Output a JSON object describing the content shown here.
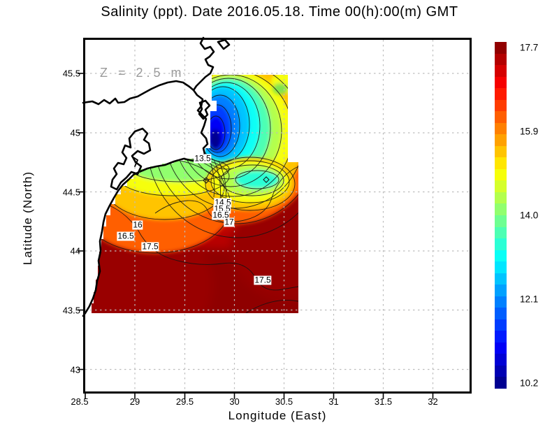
{
  "title": "Salinity (ppt). Date 2016.05.18. Time 00(h):00(m) GMT",
  "annotation": {
    "depth_label": "Z = 2.5 m"
  },
  "axes": {
    "x": {
      "label": "Longitude (East)",
      "ticks": [
        "28.5",
        "29",
        "29.5",
        "30",
        "30.5",
        "31",
        "31.5",
        "32"
      ]
    },
    "y": {
      "label": "Latitude (North)",
      "ticks": [
        "45.5",
        "45",
        "44.5",
        "44",
        "43.5",
        "43"
      ]
    }
  },
  "colorbar": {
    "labels": [
      "17.7",
      "15.9",
      "14.0",
      "12.1",
      "10.2"
    ],
    "colors_top_to_bottom": [
      "#910000",
      "#B30000",
      "#D50000",
      "#F60000",
      "#FF1A00",
      "#FF3C00",
      "#FF5E00",
      "#FF8000",
      "#FFA100",
      "#FFC400",
      "#FFE600",
      "#F6FF09",
      "#D5FF2B",
      "#B3FF4D",
      "#91FF6E",
      "#6EFF91",
      "#4DFFB3",
      "#2BFFD5",
      "#09FFF6",
      "#00E6FF",
      "#00C4FF",
      "#00A1FF",
      "#0080FF",
      "#005EFF",
      "#003CFF",
      "#001AFF",
      "#0000F6",
      "#0000D5",
      "#0000B3",
      "#000091"
    ]
  },
  "map": {
    "contour_labels": [
      "13.5",
      "16",
      "16.5",
      "17.5",
      "14.5",
      "15.5",
      "16.5",
      "17",
      "17.5"
    ]
  },
  "chart_data": {
    "type": "heatmap",
    "title": "Salinity (ppt). Date 2016.05.18. Time 00(h):00(m) GMT",
    "variable": "Salinity",
    "units": "ppt",
    "date": "2016.05.18",
    "time_gmt": "00(h):00(m)",
    "depth": "Z = 2.5 m",
    "xlabel": "Longitude (East)",
    "ylabel": "Latitude (North)",
    "xlim": [
      28.5,
      32.4
    ],
    "ylim": [
      42.8,
      45.8
    ],
    "x_ticks": [
      28.5,
      29,
      29.5,
      30,
      30.5,
      31,
      31.5,
      32
    ],
    "y_ticks": [
      43,
      43.5,
      44,
      44.5,
      45,
      45.5
    ],
    "grid": true,
    "legend_position": "right-colorbar",
    "data_extent": {
      "lon": [
        28.6,
        30.65
      ],
      "lat": [
        43.5,
        45.5
      ]
    },
    "colorbar": {
      "min": 10.2,
      "max": 17.7,
      "tick_labels": [
        17.7,
        15.9,
        14.0,
        12.1,
        10.2
      ],
      "palette": "jet"
    },
    "contour_interval": 0.5,
    "labeled_contours": [
      13.5,
      14.5,
      15.5,
      16,
      16.5,
      17,
      17.5
    ],
    "sample_points": [
      {
        "lon": 29.8,
        "lat": 45.05,
        "value": 10.5,
        "note": "river plume salinity minimum (dark blue)"
      },
      {
        "lon": 29.85,
        "lat": 45.3,
        "value": 12.5
      },
      {
        "lon": 30.2,
        "lat": 45.3,
        "value": 14.5
      },
      {
        "lon": 30.5,
        "lat": 45.45,
        "value": 15.5
      },
      {
        "lon": 30.5,
        "lat": 45.0,
        "value": 16.5
      },
      {
        "lon": 29.6,
        "lat": 44.6,
        "value": 13.5
      },
      {
        "lon": 29.3,
        "lat": 44.65,
        "value": 14.5
      },
      {
        "lon": 29.0,
        "lat": 44.5,
        "value": 16.0
      },
      {
        "lon": 28.9,
        "lat": 44.3,
        "value": 16.5
      },
      {
        "lon": 29.2,
        "lat": 44.15,
        "value": 17.5
      },
      {
        "lon": 30.05,
        "lat": 44.6,
        "value": 14.0,
        "note": "low-salinity tongue (cyan)"
      },
      {
        "lon": 30.3,
        "lat": 44.0,
        "value": 17.5
      },
      {
        "lon": 29.5,
        "lat": 43.7,
        "value": 17.7,
        "note": "offshore maximum (dark red)"
      }
    ],
    "markers": [
      {
        "lon": 29.72,
        "lat": 44.6,
        "shape": "diamond"
      },
      {
        "lon": 30.32,
        "lat": 44.6,
        "shape": "diamond"
      }
    ]
  }
}
